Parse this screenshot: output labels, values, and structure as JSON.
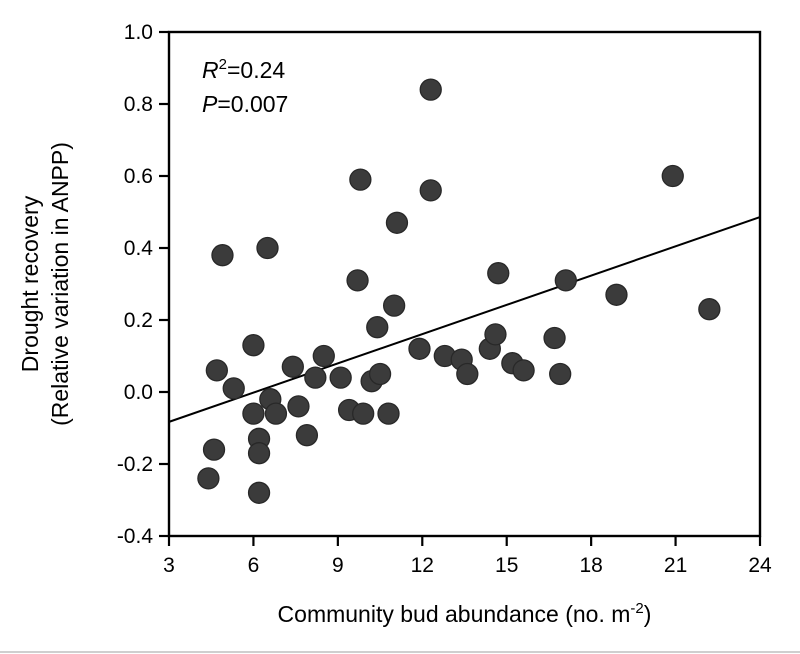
{
  "figure": {
    "background_color": "#ffffff",
    "marker_color": "#3b3b3b",
    "marker_edge_color": "#282828",
    "axis_color": "#000000",
    "text_color": "#000000",
    "border_strip_color": "#cfcfcf"
  },
  "chart_data": {
    "type": "scatter",
    "title": "",
    "xlabel": "Community bud abundance (no. m-2)",
    "xlabel_main": "Community bud abundance (no. m",
    "xlabel_superscript": "-2",
    "xlabel_close": ")",
    "ylabel_line1": "Drought recovery",
    "ylabel_line2": "(Relative variation in ANPP)",
    "xlim": [
      3,
      24
    ],
    "ylim": [
      -0.4,
      1.0
    ],
    "xticks": [
      3,
      6,
      9,
      12,
      15,
      18,
      21,
      24
    ],
    "xtick_labels": [
      "3",
      "6",
      "9",
      "12",
      "15",
      "18",
      "21",
      "24"
    ],
    "yticks": [
      -0.4,
      -0.2,
      0.0,
      0.2,
      0.4,
      0.6,
      0.8,
      1.0
    ],
    "ytick_labels": [
      "-0.4",
      "-0.2",
      "0.0",
      "0.2",
      "0.4",
      "0.6",
      "0.8",
      "1.0"
    ],
    "grid": false,
    "legend": false,
    "stats_annotation": {
      "r_variable": "R",
      "r_superscript": "2",
      "r_value_text": "=0.24",
      "p_variable": "P",
      "p_value_text": "=0.007"
    },
    "trendline": {
      "x_start": 3,
      "y_start": -0.083,
      "x_end": 24,
      "y_end": 0.486
    },
    "points": [
      [
        4.4,
        -0.24
      ],
      [
        4.6,
        -0.16
      ],
      [
        4.7,
        0.06
      ],
      [
        4.9,
        0.38
      ],
      [
        5.3,
        0.01
      ],
      [
        6.0,
        -0.06
      ],
      [
        6.0,
        0.13
      ],
      [
        6.2,
        -0.13
      ],
      [
        6.2,
        -0.17
      ],
      [
        6.2,
        -0.28
      ],
      [
        6.5,
        0.4
      ],
      [
        6.6,
        -0.02
      ],
      [
        6.8,
        -0.06
      ],
      [
        7.4,
        0.07
      ],
      [
        7.6,
        -0.04
      ],
      [
        7.9,
        -0.12
      ],
      [
        8.2,
        0.04
      ],
      [
        8.5,
        0.1
      ],
      [
        9.1,
        0.04
      ],
      [
        9.4,
        -0.05
      ],
      [
        9.7,
        0.31
      ],
      [
        9.8,
        0.59
      ],
      [
        9.9,
        -0.06
      ],
      [
        10.2,
        0.03
      ],
      [
        10.4,
        0.18
      ],
      [
        10.5,
        0.05
      ],
      [
        10.8,
        -0.06
      ],
      [
        11.0,
        0.24
      ],
      [
        11.1,
        0.47
      ],
      [
        11.9,
        0.12
      ],
      [
        12.3,
        0.84
      ],
      [
        12.3,
        0.56
      ],
      [
        12.8,
        0.1
      ],
      [
        13.4,
        0.09
      ],
      [
        13.6,
        0.05
      ],
      [
        14.4,
        0.12
      ],
      [
        14.6,
        0.16
      ],
      [
        14.7,
        0.33
      ],
      [
        15.2,
        0.08
      ],
      [
        15.6,
        0.06
      ],
      [
        16.7,
        0.15
      ],
      [
        16.9,
        0.05
      ],
      [
        17.1,
        0.31
      ],
      [
        18.9,
        0.27
      ],
      [
        20.9,
        0.6
      ],
      [
        22.2,
        0.23
      ]
    ]
  }
}
